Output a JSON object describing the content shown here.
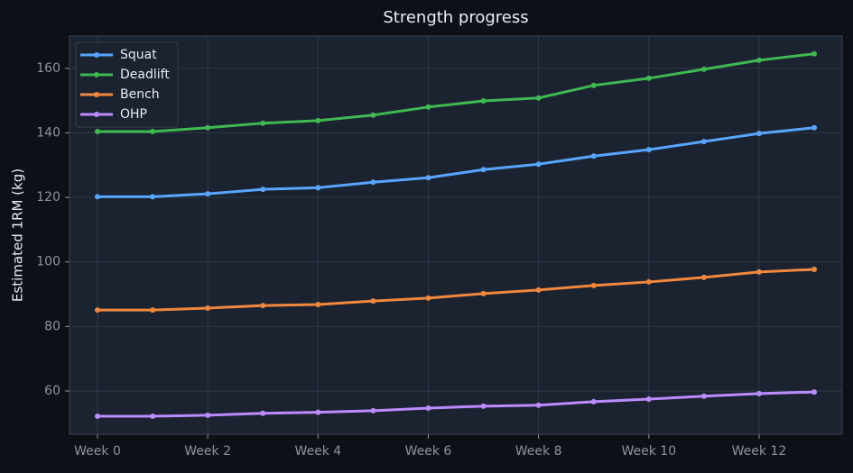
{
  "chart_data": {
    "type": "line",
    "title": "Strength progress",
    "y_label": "Estimated 1RM (kg)",
    "categories": [
      "Week 0",
      null,
      "Week 2",
      null,
      "Week 4",
      null,
      "Week 6",
      null,
      "Week 8",
      null,
      "Week 10",
      null,
      "Week 12",
      null
    ],
    "series": [
      {
        "name": "Squat",
        "color": "#58a6ff",
        "values": [
          120.2,
          120.2,
          121.1,
          122.5,
          123.0,
          124.7,
          126.1,
          128.6,
          130.3,
          132.8,
          134.8,
          137.3,
          139.8,
          141.6
        ]
      },
      {
        "name": "Deadlift",
        "color": "#3fb950",
        "values": [
          140.4,
          140.4,
          141.6,
          143.0,
          143.8,
          145.5,
          148.0,
          149.9,
          150.8,
          154.7,
          156.9,
          159.7,
          162.5,
          164.5
        ]
      },
      {
        "name": "Bench",
        "color": "#f0883e",
        "values": [
          85.1,
          85.1,
          85.7,
          86.5,
          86.8,
          87.9,
          88.8,
          90.2,
          91.3,
          92.7,
          93.8,
          95.2,
          96.9,
          97.7
        ]
      },
      {
        "name": "OHP",
        "color": "#bc8cff",
        "values": [
          52.2,
          52.2,
          52.5,
          53.1,
          53.4,
          53.9,
          54.7,
          55.3,
          55.6,
          56.7,
          57.5,
          58.4,
          59.2,
          59.7
        ]
      }
    ],
    "ylim": [
      46.6,
      170
    ],
    "yticks": [
      60,
      80,
      100,
      120,
      140,
      160
    ],
    "grid": true,
    "legend": "upper left"
  }
}
